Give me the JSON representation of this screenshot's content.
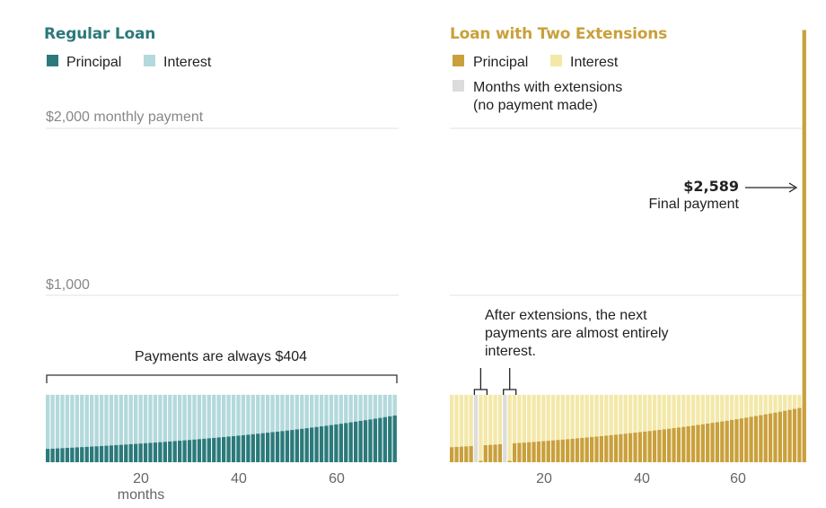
{
  "colors": {
    "regular_principal": "#2b7a7b",
    "regular_interest": "#b3d9dc",
    "ext_principal": "#c9a03b",
    "ext_interest": "#f3e8a8",
    "ext_months": "#dcdcdc",
    "gridline": "#e2e2e2",
    "title_regular": "#2b7a7b",
    "title_ext": "#c9a03b"
  },
  "chart_data": [
    {
      "type": "bar",
      "stacked": true,
      "title": "Regular Loan",
      "legend": [
        "Principal",
        "Interest"
      ],
      "series": [
        {
          "name": "Principal",
          "values_desc": "rises steadily from about 80 in month 1 to about 280 in month 72"
        },
        {
          "name": "Interest",
          "values_desc": "remainder of the constant 404 payment"
        }
      ],
      "months": 72,
      "payment": 404,
      "principal_start": 80,
      "principal_end": 280,
      "ylim": [
        0,
        2000
      ],
      "gridlines": [
        {
          "value": 2000,
          "label": "$2,000 monthly payment"
        },
        {
          "value": 1000,
          "label": "$1,000"
        }
      ],
      "xticks": [
        20,
        40,
        60
      ],
      "xlabel": "months",
      "annotation": "Payments are always $404"
    },
    {
      "type": "bar",
      "stacked": true,
      "title": "Loan with Two Extensions",
      "legend": [
        "Principal",
        "Interest",
        "Months with extensions",
        "(no payment made)"
      ],
      "months": 74,
      "payment": 404,
      "extension_months": [
        6,
        12
      ],
      "near_zero_principal_months": [
        7,
        13
      ],
      "principal_start": 90,
      "principal_end": 325,
      "final_payment": 2589,
      "ylim": [
        0,
        2000
      ],
      "gridlines": [
        2000,
        1000
      ],
      "xticks": [
        20,
        40,
        60
      ],
      "annotation_lines": [
        "After extensions, the next",
        "payments are almost entirely",
        "interest."
      ],
      "final_label_value": "$2,589",
      "final_label_text": "Final payment"
    }
  ]
}
